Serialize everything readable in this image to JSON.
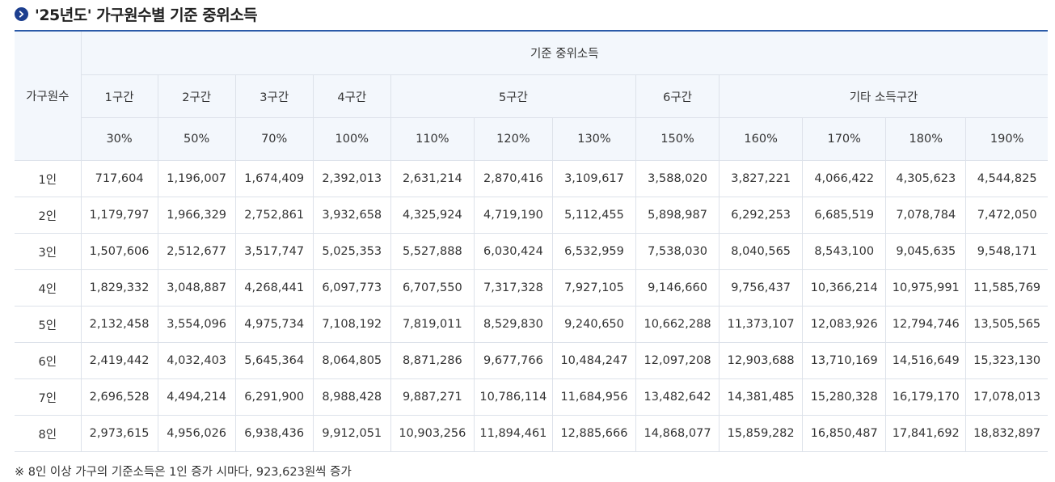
{
  "title": "'25년도' 가구원수별 기준 중위소득",
  "icons": {
    "title_bullet": "chevron-right-circle-icon"
  },
  "colors": {
    "accent": "#1d3f8f",
    "header_bg": "#f3f7fc",
    "rule": "#2b5aa8"
  },
  "table": {
    "row_header": "가구원수",
    "group_header": "기준 중위소득",
    "sections": [
      {
        "label": "1구간",
        "percents": [
          "30%"
        ]
      },
      {
        "label": "2구간",
        "percents": [
          "50%"
        ]
      },
      {
        "label": "3구간",
        "percents": [
          "70%"
        ]
      },
      {
        "label": "4구간",
        "percents": [
          "100%"
        ]
      },
      {
        "label": "5구간",
        "percents": [
          "110%",
          "120%",
          "130%"
        ]
      },
      {
        "label": "6구간",
        "percents": [
          "150%"
        ]
      },
      {
        "label": "기타 소득구간",
        "percents": [
          "160%",
          "170%",
          "180%",
          "190%"
        ]
      }
    ],
    "rows": [
      {
        "label": "1인",
        "values": [
          "717,604",
          "1,196,007",
          "1,674,409",
          "2,392,013",
          "2,631,214",
          "2,870,416",
          "3,109,617",
          "3,588,020",
          "3,827,221",
          "4,066,422",
          "4,305,623",
          "4,544,825"
        ]
      },
      {
        "label": "2인",
        "values": [
          "1,179,797",
          "1,966,329",
          "2,752,861",
          "3,932,658",
          "4,325,924",
          "4,719,190",
          "5,112,455",
          "5,898,987",
          "6,292,253",
          "6,685,519",
          "7,078,784",
          "7,472,050"
        ]
      },
      {
        "label": "3인",
        "values": [
          "1,507,606",
          "2,512,677",
          "3,517,747",
          "5,025,353",
          "5,527,888",
          "6,030,424",
          "6,532,959",
          "7,538,030",
          "8,040,565",
          "8,543,100",
          "9,045,635",
          "9,548,171"
        ]
      },
      {
        "label": "4인",
        "values": [
          "1,829,332",
          "3,048,887",
          "4,268,441",
          "6,097,773",
          "6,707,550",
          "7,317,328",
          "7,927,105",
          "9,146,660",
          "9,756,437",
          "10,366,214",
          "10,975,991",
          "11,585,769"
        ]
      },
      {
        "label": "5인",
        "values": [
          "2,132,458",
          "3,554,096",
          "4,975,734",
          "7,108,192",
          "7,819,011",
          "8,529,830",
          "9,240,650",
          "10,662,288",
          "11,373,107",
          "12,083,926",
          "12,794,746",
          "13,505,565"
        ]
      },
      {
        "label": "6인",
        "values": [
          "2,419,442",
          "4,032,403",
          "5,645,364",
          "8,064,805",
          "8,871,286",
          "9,677,766",
          "10,484,247",
          "12,097,208",
          "12,903,688",
          "13,710,169",
          "14,516,649",
          "15,323,130"
        ]
      },
      {
        "label": "7인",
        "values": [
          "2,696,528",
          "4,494,214",
          "6,291,900",
          "8,988,428",
          "9,887,271",
          "10,786,114",
          "11,684,956",
          "13,482,642",
          "14,381,485",
          "15,280,328",
          "16,179,170",
          "17,078,013"
        ]
      },
      {
        "label": "8인",
        "values": [
          "2,973,615",
          "4,956,026",
          "6,938,436",
          "9,912,051",
          "10,903,256",
          "11,894,461",
          "12,885,666",
          "14,868,077",
          "15,859,282",
          "16,850,487",
          "17,841,692",
          "18,832,897"
        ]
      }
    ]
  },
  "note": "※ 8인 이상 가구의 기준소득은 1인 증가 시마다, 923,623원씩 증가"
}
